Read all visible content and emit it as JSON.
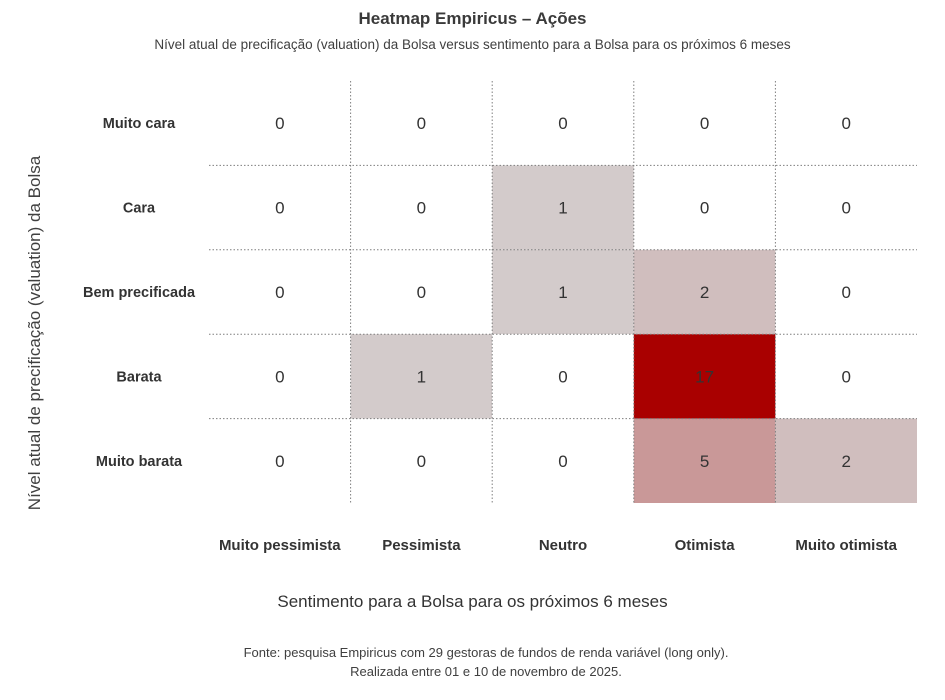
{
  "chart_data": {
    "type": "heatmap",
    "title": "Heatmap Empiricus – Ações",
    "subtitle": "Nível atual de precificação (valuation) da Bolsa versus sentimento para a Bolsa para os próximos 6 meses",
    "xlabel": "Sentimento para a Bolsa para os próximos 6 meses",
    "ylabel": "Nível atual de precificação (valuation) da Bolsa",
    "x_categories": [
      "Muito pessimista",
      "Pessimista",
      "Neutro",
      "Otimista",
      "Muito otimista"
    ],
    "y_categories": [
      "Muito cara",
      "Cara",
      "Bem precificada",
      "Barata",
      "Muito barata"
    ],
    "values": [
      [
        0,
        0,
        0,
        0,
        0
      ],
      [
        0,
        0,
        1,
        0,
        0
      ],
      [
        0,
        0,
        1,
        2,
        0
      ],
      [
        0,
        1,
        0,
        17,
        0
      ],
      [
        0,
        0,
        0,
        5,
        2
      ]
    ],
    "colors": {
      "low": "#d3cbcb",
      "high": "#a90000",
      "zero": "#ffffff",
      "grid": "#7f7f7f"
    }
  },
  "footer": {
    "source_line1": "Fonte: pesquisa  Empiricus com 29 gestoras de fundos de renda variável (long only).",
    "source_line2": "Realizada entre 01 e 10 de novembro de 2025."
  }
}
